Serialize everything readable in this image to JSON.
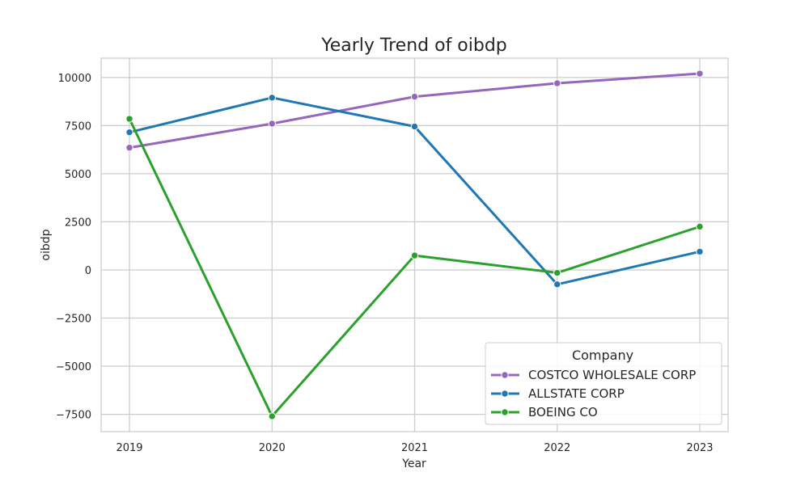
{
  "chart_data": {
    "type": "line",
    "title": "Yearly Trend of oibdp",
    "xlabel": "Year",
    "ylabel": "oibdp",
    "x": [
      "2019",
      "2020",
      "2021",
      "2022",
      "2023"
    ],
    "ylim": [
      -8400,
      11000
    ],
    "yticks": [
      10000,
      7500,
      5000,
      2500,
      0,
      -2500,
      -5000,
      -7500
    ],
    "ytick_labels": [
      "10000",
      "7500",
      "5000",
      "2500",
      "0",
      "−2500",
      "−5000",
      "−7500"
    ],
    "grid": true,
    "legend": {
      "title": "Company",
      "placement": "lower-right"
    },
    "series": [
      {
        "name": "COSTCO WHOLESALE CORP",
        "color": "#9467bd",
        "values": [
          6350,
          7600,
          9000,
          9700,
          10200
        ]
      },
      {
        "name": "ALLSTATE CORP",
        "color": "#1f77b4",
        "values": [
          7150,
          8950,
          7450,
          -750,
          950
        ]
      },
      {
        "name": "BOEING CO",
        "color": "#2ca02c",
        "values": [
          7850,
          -7600,
          750,
          -150,
          2250
        ]
      }
    ]
  }
}
